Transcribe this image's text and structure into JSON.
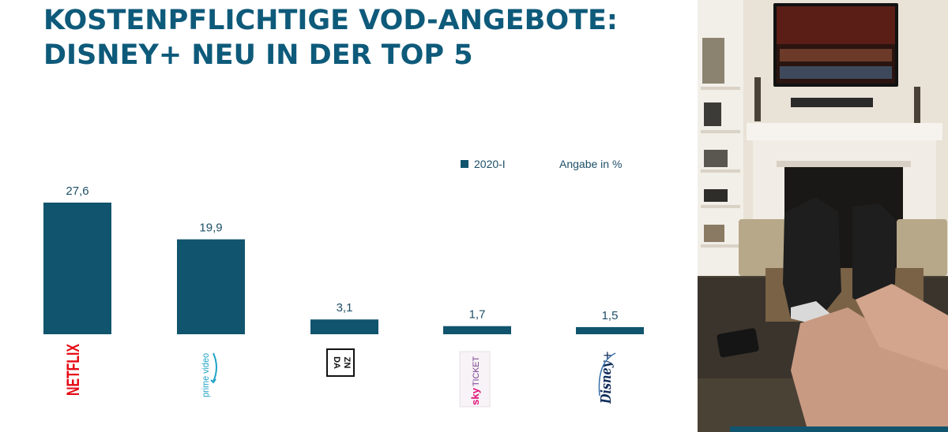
{
  "title": {
    "line1": "KOSTENPFLICHTIGE VOD-ANGEBOTE:",
    "line2": "DISNEY+ NEU IN DER TOP 5"
  },
  "legend": {
    "series_label": "2020-I",
    "unit_label": "Angabe in %"
  },
  "logos": {
    "netflix": "NETFLIX",
    "prime": "prime video",
    "dazn": "DAZN",
    "sky": "sky TICKET",
    "disney": "Disney+"
  },
  "colors": {
    "title": "#0e5a7a",
    "bar": "#11546e",
    "netflix": "#e50914",
    "prime": "#1fa3c6",
    "sky": "#e1127a"
  },
  "chart_data": {
    "type": "bar",
    "categories": [
      "NETFLIX",
      "prime video",
      "DAZN",
      "sky TICKET",
      "Disney+"
    ],
    "series": [
      {
        "name": "2020-I",
        "values": [
          27.6,
          19.9,
          3.1,
          1.7,
          1.5
        ]
      }
    ],
    "value_labels": [
      "27,6",
      "19,9",
      "3,1",
      "1,7",
      "1,5"
    ],
    "ylim": [
      0,
      27.6
    ],
    "grid": false,
    "legend_position": "top-right"
  }
}
